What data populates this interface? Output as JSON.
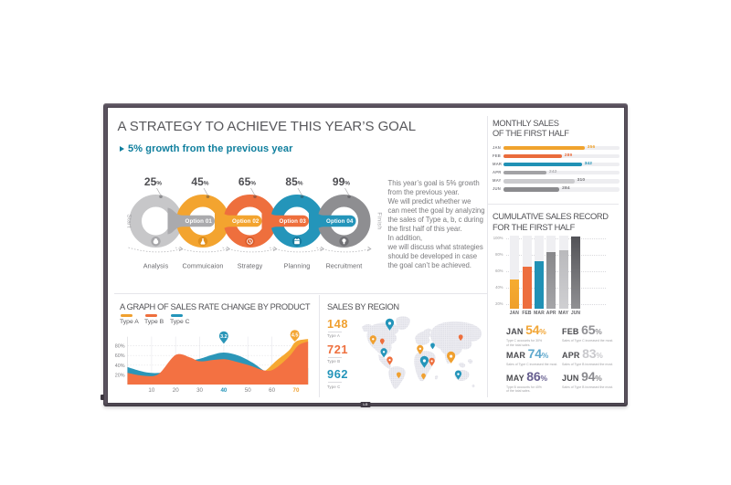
{
  "device": {
    "brand_logo": "LG",
    "bezel_color": "#5a525e",
    "background": "#ffffff"
  },
  "header": {
    "title": "A STRATEGY TO ACHIEVE THIS YEAR’S GOAL",
    "subtitle": "5% growth from the previous year"
  },
  "description_lines": [
    "This year’s goal is 5% growth",
    "from the previous year.",
    "We will predict whether we",
    "can meet the goal by analyzing",
    "the sales of Type a, b, c during",
    "the first half of this year.",
    "In addition,",
    "we will discuss what strategies",
    "should be developed in case",
    "the goal can’t be achieved."
  ],
  "process": {
    "start_label": "Start",
    "finish_label": "Finish",
    "steps": [
      {
        "pct": "25",
        "label": "Analysis",
        "icon": "money-bag-icon",
        "color": "#c7c7c9",
        "icon_bg": "#a6a6a9"
      },
      {
        "pct": "45",
        "label": "Commuicaion",
        "icon": "flask-icon",
        "color": "#f3a42f",
        "icon_bg": "#e08f1d",
        "connector": {
          "label": "Option 01",
          "color": "#aaaaad"
        }
      },
      {
        "pct": "65",
        "label": "Strategy",
        "icon": "clock-icon",
        "color": "#ee6f3d",
        "icon_bg": "#d95c2b",
        "connector": {
          "label": "Option 02",
          "color": "#f3a42f"
        }
      },
      {
        "pct": "85",
        "label": "Planning",
        "icon": "calendar-icon",
        "color": "#2495ba",
        "icon_bg": "#177b9e",
        "connector": {
          "label": "Option 03",
          "color": "#ee6f3d"
        }
      },
      {
        "pct": "99",
        "label": "Recruitment",
        "icon": "bulb-icon",
        "color": "#8e8e91",
        "icon_bg": "#707074",
        "connector": {
          "label": "Option 04",
          "color": "#2495ba"
        }
      }
    ]
  },
  "chart_data": [
    {
      "id": "monthly_sales",
      "type": "bar",
      "orientation": "horizontal",
      "title_lines": [
        "MONTHLY SALES",
        "OF THE FIRST HALF"
      ],
      "categories": [
        "JAN",
        "FEB",
        "MAR",
        "APR",
        "MAY",
        "JUN"
      ],
      "values": [
        356,
        289,
        342,
        242,
        310,
        284
      ],
      "bar_fill_pct": [
        70,
        50.4,
        67.5,
        37.3,
        61.3,
        48.3
      ],
      "bar_colors": [
        "#f0a32e",
        "#ea6c3c",
        "#2191b5",
        "#a2a2a5",
        "#cbcbce",
        "#8b8b8e"
      ],
      "value_colors": [
        "#f0a32e",
        "#ea6c3c",
        "#2191b5",
        "#ababae",
        "#737376",
        "#737376"
      ],
      "track_color": "#eeeef1",
      "legend_position": "none",
      "grid": false
    },
    {
      "id": "cumulative_sales",
      "type": "bar",
      "orientation": "vertical",
      "title_lines": [
        "CUMULATIVE SALES RECORD",
        "FOR THE FIRST HALF"
      ],
      "categories": [
        "JAN",
        "FEB",
        "MAR",
        "APR",
        "MAY",
        "JUN"
      ],
      "values": [
        54,
        65,
        74,
        83,
        86,
        94
      ],
      "rendered_track_pct": [
        50,
        65,
        72,
        83,
        86,
        103
      ],
      "ylim": [
        14,
        103
      ],
      "yticks": [
        "100%",
        "80%",
        "60%",
        "40%",
        "20%"
      ],
      "bar_colors_top": [
        "#f6ac31",
        "#ed6e3e",
        "#2191b5",
        "#87878a",
        "#b9b9bc",
        "#525257"
      ],
      "bar_colors_bottom": [
        "#efa02c",
        "#ed6e3e",
        "#2191b5",
        "#a5a5a8",
        "#cfcfd2",
        "#909093"
      ],
      "grid": "dotted"
    },
    {
      "id": "sales_rate_change",
      "type": "area",
      "title": "A GRAPH OF SALES RATE CHANGE BY PRODUCT",
      "legend": [
        "Type A",
        "Type B",
        "Type C"
      ],
      "legend_colors": [
        "#f0a02f",
        "#ee6f3d",
        "#2495ba"
      ],
      "xticks": [
        "10",
        "20",
        "30",
        "40",
        "50",
        "60",
        "70"
      ],
      "xtick_colors": [
        "#808083",
        "#808083",
        "#808083",
        "#2495ba",
        "#808083",
        "#808083",
        "#f0a02f"
      ],
      "yticks": [
        "80%",
        "60%",
        "40%",
        "20%"
      ],
      "xlim": [
        0,
        75
      ],
      "ylim": [
        0,
        100
      ],
      "series": [
        {
          "name": "Type A",
          "color": "#f6a832",
          "points": [
            [
              0,
              16
            ],
            [
              10,
              14
            ],
            [
              20,
              38
            ],
            [
              30,
              34
            ],
            [
              40,
              42
            ],
            [
              50,
              28
            ],
            [
              56,
              25
            ],
            [
              62,
              50
            ],
            [
              67,
              70
            ],
            [
              70,
              89
            ],
            [
              75,
              94
            ]
          ]
        },
        {
          "name": "Type C",
          "color": "#2b96b8",
          "points": [
            [
              0,
              36
            ],
            [
              8,
              25
            ],
            [
              15,
              26
            ],
            [
              22,
              44
            ],
            [
              30,
              53
            ],
            [
              35,
              61
            ],
            [
              40,
              66
            ],
            [
              46,
              60
            ],
            [
              52,
              45
            ],
            [
              57,
              28
            ],
            [
              62,
              22
            ],
            [
              70,
              30
            ],
            [
              75,
              34
            ]
          ]
        },
        {
          "name": "Type B",
          "color": "#f37142",
          "points": [
            [
              0,
              24
            ],
            [
              7,
              18
            ],
            [
              13,
              22
            ],
            [
              20,
              61
            ],
            [
              26,
              56
            ],
            [
              30,
              48
            ],
            [
              36,
              51
            ],
            [
              41,
              52
            ],
            [
              46,
              46
            ],
            [
              51,
              39
            ],
            [
              57,
              29
            ],
            [
              61,
              32
            ],
            [
              67,
              57
            ],
            [
              71,
              81
            ],
            [
              75,
              89
            ]
          ]
        }
      ],
      "markers": [
        {
          "x": 40,
          "label": "3.2",
          "color": "#2b96b8"
        },
        {
          "x": 69.5,
          "label": "4.5",
          "color": "#f4a634"
        }
      ],
      "grid": true
    },
    {
      "id": "sales_by_region",
      "type": "map",
      "title": "SALES BY REGION",
      "totals": [
        {
          "value": "148",
          "label": "Type A",
          "color": "#f0a02f"
        },
        {
          "value": "721",
          "label": "Type B",
          "color": "#ee6f3d"
        },
        {
          "value": "962",
          "label": "Type C",
          "color": "#2495ba"
        }
      ],
      "pins": [
        {
          "x": 32.5,
          "y": 12,
          "size": 4.6,
          "color": "#2495ba"
        },
        {
          "x": 14.3,
          "y": 29.3,
          "size": 3.6,
          "color": "#f0a02f"
        },
        {
          "x": 24.3,
          "y": 31.4,
          "size": 2.4,
          "color": "#ee6f3d"
        },
        {
          "x": 26.1,
          "y": 43.3,
          "size": 3.6,
          "color": "#2495ba"
        },
        {
          "x": 32.5,
          "y": 52.1,
          "size": 3.2,
          "color": "#ee6f3d"
        },
        {
          "x": 42.4,
          "y": 68.2,
          "size": 2.4,
          "color": "#f0a02f"
        },
        {
          "x": 65.8,
          "y": 39.9,
          "size": 3.6,
          "color": "#f0a02f"
        },
        {
          "x": 79.5,
          "y": 36.2,
          "size": 2.4,
          "color": "#2495ba"
        },
        {
          "x": 70.4,
          "y": 53,
          "size": 4.6,
          "color": "#2495ba"
        },
        {
          "x": 78.6,
          "y": 53.4,
          "size": 3.2,
          "color": "#ee6f3d"
        },
        {
          "x": 69.5,
          "y": 69.5,
          "size": 2.4,
          "color": "#f0a02f"
        },
        {
          "x": 99.6,
          "y": 48.1,
          "size": 4.6,
          "color": "#f0a02f"
        },
        {
          "x": 110.2,
          "y": 27.1,
          "size": 2.4,
          "color": "#ee6f3d"
        },
        {
          "x": 107.5,
          "y": 67.6,
          "size": 3.6,
          "color": "#2495ba"
        }
      ]
    }
  ],
  "month_stats": [
    {
      "month": "JAN",
      "pct": "54",
      "color": "#f2a636",
      "sub_lines": [
        "Type C accounts for 30%",
        "of the total sales."
      ]
    },
    {
      "month": "FEB",
      "pct": "65",
      "color": "#919195",
      "sub_lines": [
        "Sales of Type C increased the most."
      ]
    },
    {
      "month": "MAR",
      "pct": "74",
      "color": "#5fa8cd",
      "sub_lines": [
        "Sales of Type C increased the most."
      ]
    },
    {
      "month": "APR",
      "pct": "83",
      "color": "#c9c9cd",
      "sub_lines": [
        "Sales of Type B increased the most."
      ]
    },
    {
      "month": "MAY",
      "pct": "86",
      "color": "#675f90",
      "sub_lines": [
        "Type B accounts for 40%",
        "of the total sales."
      ]
    },
    {
      "month": "JUN",
      "pct": "94",
      "color": "#8a8a8e",
      "sub_lines": [
        "Sales of Type B increased the most."
      ]
    }
  ]
}
